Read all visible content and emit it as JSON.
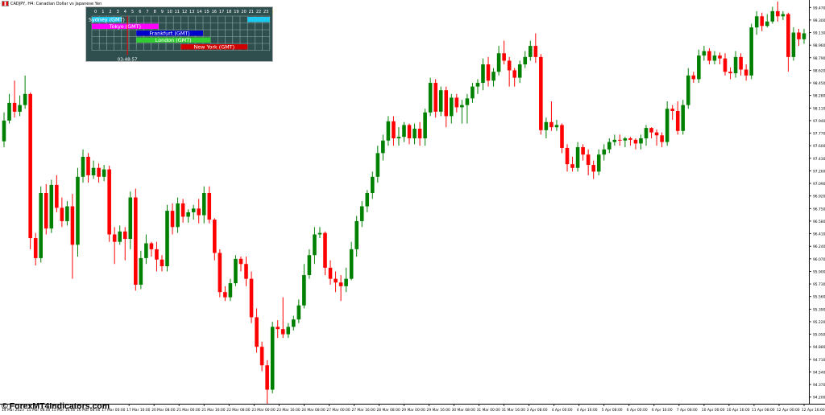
{
  "window": {
    "title": "CADJPY, H4:  Canadian Dollar vs Japanese Yen",
    "flag_icon": "canada-japan-flag-icon"
  },
  "brand": {
    "text": "ForexMT4Indicators.com",
    "icon": "copyright-icon"
  },
  "sessions_panel": {
    "hours": [
      "0",
      "1",
      "2",
      "3",
      "4",
      "5",
      "6",
      "7",
      "8",
      "9",
      "10",
      "11",
      "12",
      "13",
      "14",
      "15",
      "16",
      "17",
      "18",
      "19",
      "20",
      "21",
      "22",
      "23"
    ],
    "settings_label": "S",
    "current_time": "03:48:57",
    "current_hour": 4.8,
    "sessions": [
      {
        "name": "Sydney (GMT)",
        "start": 0,
        "end": 4,
        "end2_start": 21,
        "end2_end": 24,
        "color": "#1ec8f0"
      },
      {
        "name": "Tokyo (GMT)",
        "start": 0,
        "end": 9,
        "color": "#ff00ff"
      },
      {
        "name": "Frankfurt (GMT)",
        "start": 6,
        "end": 15,
        "color": "#0000cd"
      },
      {
        "name": "London (GMT)",
        "start": 6,
        "end": 16,
        "color": "#32cd32"
      },
      {
        "name": "New York (GMT)",
        "start": 12,
        "end": 21,
        "color": "#d00000"
      }
    ]
  },
  "chart_data": {
    "type": "candlestick",
    "symbol": "CADJPY",
    "timeframe": "H4",
    "ylim": [
      94.11,
      99.56
    ],
    "grid": false,
    "colors": {
      "bull": "#008000",
      "bear": "#ff0000",
      "axis": "#000000"
    },
    "y_ticks": [
      "99.470",
      "99.300",
      "99.130",
      "98.960",
      "98.790",
      "98.620",
      "98.450",
      "98.280",
      "98.110",
      "97.940",
      "97.770",
      "97.600",
      "97.430",
      "97.260",
      "97.090",
      "96.920",
      "96.750",
      "96.580",
      "96.410",
      "96.240",
      "96.070",
      "95.900",
      "95.730",
      "95.560",
      "95.390",
      "95.220",
      "95.050",
      "94.880",
      "94.710",
      "94.540",
      "94.370",
      "94.200"
    ],
    "x_ticks": [
      "14 Mar 2023",
      "15 Mar 08:00",
      "15 Mar 16:00",
      "16 Mar 08:00",
      "17 Mar 00:00",
      "17 Mar 16:00",
      "20 Mar 08:00",
      "21 Mar 00:00",
      "21 Mar 16:00",
      "22 Mar 08:00",
      "23 Mar 00:00",
      "23 Mar 16:00",
      "24 Mar 08:00",
      "27 Mar 00:00",
      "27 Mar 16:00",
      "28 Mar 08:00",
      "29 Mar 00:00",
      "29 Mar 16:00",
      "30 Mar 08:00",
      "31 Mar 00:00",
      "31 Mar 16:00",
      "3 Apr 08:00",
      "4 Apr 00:00",
      "4 Apr 16:00",
      "5 Apr 08:00",
      "6 Apr 00:00",
      "6 Apr 16:00",
      "7 Apr 08:00",
      "10 Apr 00:00",
      "10 Apr 16:00",
      "11 Apr 08:00",
      "12 Apr 00:00",
      "12 Apr 16:00"
    ],
    "candles": [
      [
        97.66,
        97.94,
        97.58,
        98.05
      ],
      [
        97.94,
        98.18,
        97.9,
        98.3
      ],
      [
        98.18,
        98.06,
        97.98,
        98.48
      ],
      [
        98.06,
        98.15,
        98.0,
        98.28
      ],
      [
        98.15,
        98.3,
        98.1,
        98.55
      ],
      [
        98.3,
        96.35,
        96.2,
        98.32
      ],
      [
        96.35,
        96.08,
        95.98,
        96.42
      ],
      [
        96.08,
        96.96,
        96.02,
        97.05
      ],
      [
        96.96,
        96.48,
        96.4,
        97.08
      ],
      [
        96.48,
        97.07,
        96.42,
        97.14
      ],
      [
        97.07,
        96.76,
        96.7,
        97.2
      ],
      [
        96.76,
        96.58,
        96.5,
        96.9
      ],
      [
        96.58,
        96.78,
        96.52,
        96.85
      ],
      [
        96.78,
        96.26,
        95.8,
        96.95
      ],
      [
        96.26,
        97.18,
        96.1,
        97.3
      ],
      [
        97.18,
        97.45,
        97.1,
        97.55
      ],
      [
        97.45,
        97.2,
        97.1,
        97.5
      ],
      [
        97.2,
        97.3,
        97.15,
        97.4
      ],
      [
        97.3,
        97.18,
        97.1,
        97.36
      ],
      [
        97.18,
        97.28,
        97.12,
        97.34
      ],
      [
        97.28,
        96.4,
        96.3,
        97.33
      ],
      [
        96.4,
        96.3,
        96.0,
        96.5
      ],
      [
        96.3,
        96.44,
        96.26,
        96.52
      ],
      [
        96.44,
        96.34,
        96.05,
        96.5
      ],
      [
        96.34,
        96.9,
        96.2,
        96.98
      ],
      [
        96.9,
        95.72,
        95.64,
        97.02
      ],
      [
        95.72,
        96.08,
        95.66,
        96.18
      ],
      [
        96.08,
        96.28,
        96.0,
        96.4
      ],
      [
        96.28,
        96.2,
        96.1,
        96.3
      ],
      [
        96.2,
        96.06,
        95.9,
        96.3
      ],
      [
        96.06,
        95.97,
        95.9,
        96.12
      ],
      [
        95.97,
        96.72,
        95.9,
        96.8
      ],
      [
        96.72,
        96.5,
        96.4,
        96.82
      ],
      [
        96.5,
        96.82,
        96.42,
        96.9
      ],
      [
        96.82,
        96.64,
        96.56,
        96.88
      ],
      [
        96.64,
        96.7,
        96.56,
        96.74
      ],
      [
        96.7,
        96.75,
        96.6,
        96.8
      ],
      [
        96.75,
        96.66,
        96.55,
        96.88
      ],
      [
        96.66,
        96.96,
        96.55,
        97.05
      ],
      [
        96.96,
        96.6,
        96.55,
        97.05
      ],
      [
        96.6,
        96.15,
        96.05,
        96.62
      ],
      [
        96.15,
        95.62,
        95.55,
        96.2
      ],
      [
        95.62,
        95.55,
        95.5,
        95.7
      ],
      [
        95.55,
        95.74,
        95.5,
        95.8
      ],
      [
        95.74,
        96.07,
        95.7,
        96.12
      ],
      [
        96.07,
        96.0,
        95.9,
        96.1
      ],
      [
        96.0,
        95.8,
        95.7,
        96.1
      ],
      [
        95.8,
        95.28,
        95.2,
        95.9
      ],
      [
        95.28,
        94.88,
        94.8,
        95.4
      ],
      [
        94.88,
        94.63,
        94.55,
        94.95
      ],
      [
        94.63,
        94.3,
        94.11,
        94.7
      ],
      [
        94.3,
        95.15,
        94.25,
        95.22
      ],
      [
        95.15,
        95.12,
        95.0,
        95.24
      ],
      [
        95.12,
        95.05,
        95.0,
        95.55
      ],
      [
        95.05,
        95.15,
        95.0,
        95.2
      ],
      [
        95.15,
        95.25,
        95.1,
        95.3
      ],
      [
        95.25,
        95.44,
        95.2,
        95.52
      ],
      [
        95.44,
        95.85,
        95.4,
        96.0
      ],
      [
        95.85,
        96.12,
        95.8,
        96.2
      ],
      [
        96.12,
        96.4,
        96.0,
        96.5
      ],
      [
        96.4,
        96.42,
        96.35,
        96.5
      ],
      [
        96.42,
        95.95,
        95.85,
        96.44
      ],
      [
        95.95,
        95.8,
        95.72,
        96.05
      ],
      [
        95.8,
        95.75,
        95.62,
        95.9
      ],
      [
        95.75,
        95.7,
        95.5,
        95.85
      ],
      [
        95.7,
        95.8,
        95.62,
        95.95
      ],
      [
        95.8,
        96.2,
        95.78,
        96.3
      ],
      [
        96.2,
        96.58,
        96.1,
        96.65
      ],
      [
        96.58,
        96.78,
        96.5,
        96.85
      ],
      [
        96.78,
        96.96,
        96.7,
        97.0
      ],
      [
        96.96,
        97.18,
        96.88,
        97.25
      ],
      [
        97.18,
        97.5,
        97.1,
        97.6
      ],
      [
        97.5,
        97.67,
        97.4,
        97.75
      ],
      [
        97.67,
        97.93,
        97.6,
        98.0
      ],
      [
        97.93,
        97.7,
        97.6,
        98.0
      ],
      [
        97.7,
        97.72,
        97.6,
        97.85
      ],
      [
        97.72,
        97.88,
        97.65,
        97.92
      ],
      [
        97.88,
        97.7,
        97.62,
        97.9
      ],
      [
        97.7,
        97.83,
        97.62,
        97.9
      ],
      [
        97.83,
        97.7,
        97.6,
        97.92
      ],
      [
        97.7,
        98.05,
        97.6,
        98.1
      ],
      [
        98.05,
        98.45,
        98.0,
        98.52
      ],
      [
        98.45,
        98.06,
        97.98,
        98.5
      ],
      [
        98.06,
        98.35,
        98.0,
        98.4
      ],
      [
        98.35,
        98.0,
        97.85,
        98.4
      ],
      [
        98.0,
        98.25,
        97.9,
        98.3
      ],
      [
        98.25,
        98.12,
        98.05,
        98.3
      ],
      [
        98.12,
        98.15,
        97.9,
        98.22
      ],
      [
        98.15,
        98.24,
        97.9,
        98.3
      ],
      [
        98.24,
        98.4,
        98.18,
        98.45
      ],
      [
        98.4,
        98.45,
        98.3,
        98.5
      ],
      [
        98.45,
        98.7,
        98.35,
        98.78
      ],
      [
        98.7,
        98.48,
        98.4,
        98.8
      ],
      [
        98.48,
        98.6,
        98.4,
        98.65
      ],
      [
        98.6,
        98.85,
        98.55,
        98.95
      ],
      [
        98.85,
        98.75,
        98.7,
        99.02
      ],
      [
        98.75,
        98.62,
        98.4,
        98.8
      ],
      [
        98.62,
        98.52,
        98.4,
        98.65
      ],
      [
        98.52,
        98.7,
        98.45,
        98.75
      ],
      [
        98.7,
        98.8,
        98.65,
        98.88
      ],
      [
        98.8,
        98.95,
        98.75,
        99.02
      ],
      [
        98.95,
        98.8,
        98.72,
        99.12
      ],
      [
        98.8,
        97.81,
        97.75,
        98.84
      ],
      [
        97.81,
        97.92,
        97.7,
        97.98
      ],
      [
        97.92,
        97.85,
        97.8,
        98.2
      ],
      [
        97.85,
        97.88,
        97.8,
        97.95
      ],
      [
        97.88,
        97.57,
        97.5,
        97.9
      ],
      [
        97.57,
        97.35,
        97.25,
        97.62
      ],
      [
        97.35,
        97.3,
        97.25,
        97.45
      ],
      [
        97.3,
        97.58,
        97.25,
        97.65
      ],
      [
        97.58,
        97.48,
        97.4,
        97.62
      ],
      [
        97.48,
        97.34,
        97.2,
        97.55
      ],
      [
        97.34,
        97.25,
        97.15,
        97.4
      ],
      [
        97.25,
        97.48,
        97.2,
        97.55
      ],
      [
        97.48,
        97.55,
        97.4,
        97.62
      ],
      [
        97.55,
        97.65,
        97.5,
        97.7
      ],
      [
        97.65,
        97.68,
        97.6,
        97.75
      ],
      [
        97.68,
        97.67,
        97.6,
        97.75
      ],
      [
        97.67,
        97.7,
        97.58,
        97.72
      ],
      [
        97.7,
        97.68,
        97.6,
        97.72
      ],
      [
        97.68,
        97.63,
        97.55,
        97.7
      ],
      [
        97.63,
        97.7,
        97.55,
        97.75
      ],
      [
        97.7,
        97.84,
        97.6,
        97.88
      ],
      [
        97.84,
        97.78,
        97.7,
        97.85
      ],
      [
        97.78,
        97.74,
        97.6,
        97.82
      ],
      [
        97.74,
        97.65,
        97.58,
        97.78
      ],
      [
        97.65,
        98.1,
        97.6,
        98.2
      ],
      [
        98.1,
        98.07,
        97.95,
        98.15
      ],
      [
        98.07,
        97.8,
        97.75,
        98.2
      ],
      [
        97.8,
        98.15,
        97.75,
        98.22
      ],
      [
        98.15,
        98.55,
        98.1,
        98.65
      ],
      [
        98.55,
        98.5,
        98.45,
        98.6
      ],
      [
        98.5,
        98.82,
        98.45,
        98.9
      ],
      [
        98.82,
        98.88,
        98.75,
        98.95
      ],
      [
        98.88,
        98.75,
        98.7,
        98.92
      ],
      [
        98.75,
        98.82,
        98.7,
        98.88
      ],
      [
        98.82,
        98.78,
        98.7,
        98.86
      ],
      [
        98.78,
        98.6,
        98.55,
        98.85
      ],
      [
        98.6,
        98.58,
        98.5,
        98.66
      ],
      [
        98.58,
        98.8,
        98.52,
        98.88
      ],
      [
        98.8,
        98.63,
        98.55,
        98.85
      ],
      [
        98.63,
        98.55,
        98.48,
        98.7
      ],
      [
        98.55,
        99.2,
        98.5,
        99.25
      ],
      [
        99.2,
        99.35,
        99.1,
        99.42
      ],
      [
        99.35,
        99.22,
        99.15,
        99.4
      ],
      [
        99.22,
        99.28,
        99.2,
        99.38
      ],
      [
        99.28,
        99.42,
        99.25,
        99.48
      ],
      [
        99.42,
        99.35,
        99.28,
        99.55
      ],
      [
        99.35,
        99.38,
        99.3,
        99.42
      ],
      [
        99.38,
        98.8,
        98.6,
        99.4
      ],
      [
        98.8,
        99.13,
        98.75,
        99.2
      ],
      [
        99.13,
        99.04,
        98.95,
        99.18
      ],
      [
        99.04,
        99.12,
        98.98,
        99.18
      ]
    ]
  }
}
